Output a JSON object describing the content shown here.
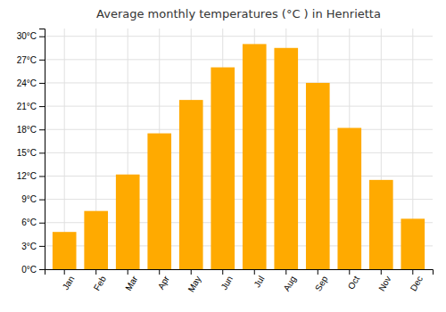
{
  "chart_data": {
    "type": "bar",
    "title": "Average monthly temperatures (°C ) in Henrietta",
    "categories": [
      "Jan",
      "Feb",
      "Mar",
      "Apr",
      "May",
      "Jun",
      "Jul",
      "Aug",
      "Sep",
      "Oct",
      "Nov",
      "Dec"
    ],
    "values": [
      4.8,
      7.5,
      12.2,
      17.5,
      21.8,
      26.0,
      29.0,
      28.5,
      24.0,
      18.2,
      11.5,
      6.5
    ],
    "color": "#FFAA00",
    "ylim": [
      0,
      31
    ],
    "yticks": [
      {
        "value": 0,
        "label": "0°C"
      },
      {
        "value": 3,
        "label": "3°C"
      },
      {
        "value": 6,
        "label": "6°C"
      },
      {
        "value": 9,
        "label": "9°C"
      },
      {
        "value": 12,
        "label": "12°C"
      },
      {
        "value": 15,
        "label": "15°C"
      },
      {
        "value": 18,
        "label": "18°C"
      },
      {
        "value": 21,
        "label": "21°C"
      },
      {
        "value": 24,
        "label": "24°C"
      },
      {
        "value": 27,
        "label": "27°C"
      },
      {
        "value": 30,
        "label": "30°C"
      }
    ],
    "grid": true
  }
}
